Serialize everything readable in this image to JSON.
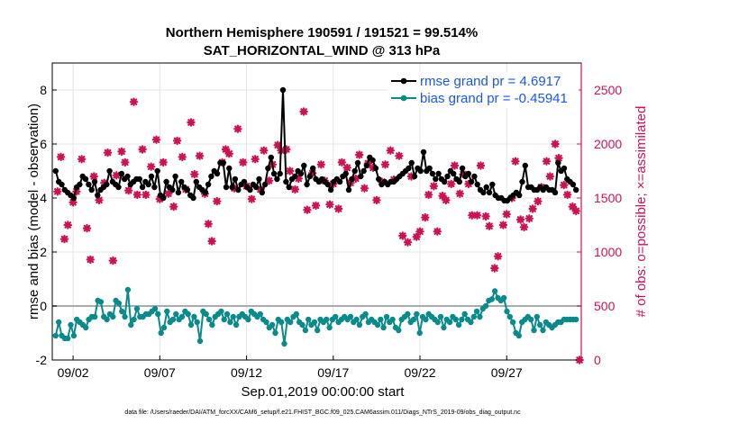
{
  "chart_data": {
    "type": "line",
    "title": "Northern Hemisphere 190591 / 191521 = 99.514%",
    "subtitle": "SAT_HORIZONTAL_WIND @ 313 hPa",
    "xlabel": "Sep.01,2019 00:00:00 start",
    "ylabel": "rmse and bias (model - observation)",
    "y2label": "# of obs: o=possible; ×=assimilated",
    "footnote": "data file: /Users/raeder/DAI/ATM_forcXX/CAM6_setup/f.e21.FHIST_BGC.f09_025.CAM6assim.011/Diags_NTrS_2019-09/obs_diag_output.nc",
    "x_start_day": 1,
    "x_end_day": 31,
    "xlim": [
      0.8,
      31.3
    ],
    "ylim": [
      -2,
      9
    ],
    "y2lim": [
      0,
      2750
    ],
    "xticks": [
      2,
      7,
      12,
      17,
      22,
      27
    ],
    "xticklabels": [
      "09/02",
      "09/07",
      "09/12",
      "09/17",
      "09/22",
      "09/27"
    ],
    "yticks": [
      -2,
      0,
      2,
      4,
      6,
      8
    ],
    "yticklabels": [
      "-2",
      "0",
      "2",
      "4",
      "6",
      "8"
    ],
    "y2ticks": [
      0,
      500,
      1000,
      1500,
      2000,
      2500
    ],
    "y2ticklabels": [
      "0",
      "500",
      "1000",
      "1500",
      "2000",
      "2500"
    ],
    "grid": true,
    "zero_line": 0,
    "legend": [
      {
        "label": "rmse grand pr = 4.6917",
        "color": "#000000"
      },
      {
        "label": "bias grand pr = -0.45941",
        "color": "#0a8a8a"
      }
    ],
    "legend_position": "top-right",
    "colors": {
      "rmse": "#000000",
      "bias": "#0a8a8a",
      "obs": "#cc1155",
      "right_axis": "#cc1155",
      "legend_text": "#1a55ee"
    },
    "series": [
      {
        "name": "rmse",
        "axis": "left",
        "values": [
          5.0,
          4.6,
          4.5,
          4.3,
          4.2,
          4.1,
          4.0,
          4.4,
          4.5,
          4.8,
          4.7,
          4.5,
          4.3,
          4.6,
          4.1,
          4.3,
          4.4,
          4.5,
          5.0,
          4.6,
          4.5,
          4.4,
          4.9,
          4.7,
          4.8,
          4.5,
          4.6,
          4.7,
          4.7,
          4.4,
          4.6,
          4.5,
          4.8,
          4.4,
          5.0,
          4.1,
          4.0,
          4.6,
          4.4,
          4.3,
          4.8,
          4.2,
          4.6,
          4.4,
          4.3,
          4.1,
          4.0,
          4.6,
          4.4,
          4.3,
          4.2,
          4.5,
          4.8,
          5.0,
          4.9,
          5.3,
          5.3,
          4.4,
          5.1,
          4.4,
          4.7,
          4.3,
          4.5,
          4.6,
          4.4,
          4.3,
          4.5,
          4.4,
          4.7,
          4.2,
          4.5,
          5.1,
          5.5,
          4.9,
          4.7,
          4.9,
          8.0,
          4.6,
          4.4,
          4.7,
          4.8,
          5.0,
          4.9,
          5.2,
          4.5,
          4.8,
          5.1,
          4.7,
          4.6,
          4.7,
          4.6,
          4.5,
          4.3,
          4.6,
          4.7,
          4.6,
          4.8,
          4.9,
          4.3,
          4.7,
          5.0,
          5.3,
          4.8,
          5.0,
          5.2,
          5.5,
          5.4,
          5.1,
          4.7,
          4.5,
          4.6,
          4.5,
          4.6,
          4.6,
          4.7,
          4.8,
          4.9,
          5.0,
          5.1,
          5.3,
          4.8,
          5.1,
          5.0,
          5.7,
          5.0,
          5.1,
          4.9,
          4.7,
          4.9,
          4.7,
          4.6,
          4.8,
          5.0,
          4.9,
          4.7,
          4.6,
          5.1,
          4.8,
          4.9,
          4.6,
          4.8,
          4.5,
          4.3,
          4.2,
          4.4,
          4.2,
          4.5,
          4.1,
          4.0,
          4.0,
          3.9,
          3.9,
          4.0,
          4.1,
          4.2,
          4.1,
          4.6,
          5.2,
          4.4,
          4.4,
          4.3,
          4.3,
          4.4,
          4.3,
          4.4,
          4.3,
          4.3,
          4.2,
          5.3,
          5.0,
          5.1,
          4.7,
          4.6,
          4.5,
          4.3
        ]
      },
      {
        "name": "bias",
        "axis": "left",
        "values": [
          -1.1,
          -0.6,
          -1.1,
          -1.2,
          -1.2,
          -0.7,
          -1.1,
          -0.5,
          -0.6,
          -0.7,
          -0.8,
          -0.5,
          -0.4,
          -0.4,
          0.2,
          0.15,
          -0.4,
          -0.5,
          -0.3,
          -0.4,
          0.2,
          0.1,
          -0.2,
          -0.4,
          0.6,
          -0.7,
          -0.5,
          -0.1,
          -0.4,
          -0.4,
          -0.3,
          -0.3,
          -0.2,
          -0.1,
          -0.3,
          -1.0,
          -0.8,
          -0.2,
          -0.6,
          -0.5,
          -0.3,
          -0.5,
          -0.4,
          -0.2,
          -0.3,
          -0.7,
          -0.4,
          -0.6,
          -1.3,
          -0.2,
          -0.3,
          -0.5,
          -0.7,
          -0.4,
          -0.3,
          -0.2,
          -0.5,
          -0.3,
          -0.6,
          -0.4,
          -0.7,
          -0.4,
          -0.3,
          -0.4,
          -0.5,
          -0.2,
          -0.3,
          -0.4,
          -0.3,
          -0.5,
          -0.6,
          -0.8,
          -0.7,
          -1.0,
          -0.5,
          -0.6,
          -1.4,
          -0.5,
          -0.6,
          -0.4,
          -0.3,
          -0.6,
          -0.7,
          -0.9,
          -0.5,
          -0.7,
          -0.6,
          -0.9,
          -0.5,
          -0.6,
          -0.5,
          -0.8,
          -0.5,
          -0.4,
          -0.6,
          -0.5,
          -0.4,
          -0.5,
          -0.4,
          -0.6,
          -0.5,
          -0.7,
          -0.4,
          -0.3,
          -0.6,
          -0.5,
          -0.6,
          -0.7,
          -0.5,
          -0.8,
          -0.4,
          -0.6,
          -0.5,
          -0.8,
          -0.9,
          -0.5,
          -0.4,
          -0.3,
          -0.6,
          -0.5,
          -0.3,
          -1.0,
          -0.4,
          -0.5,
          -0.3,
          -0.4,
          -0.5,
          -0.6,
          -0.4,
          -0.8,
          -0.5,
          -0.6,
          -0.4,
          -0.5,
          -0.7,
          -0.5,
          -0.3,
          -0.5,
          -0.6,
          -0.4,
          -0.2,
          -0.4,
          -0.1,
          0.0,
          0.2,
          0.25,
          0.55,
          0.3,
          0.2,
          0.3,
          -0.2,
          -0.4,
          -0.6,
          -1.0,
          -1.1,
          -0.6,
          -0.5,
          -0.4,
          -0.5,
          -0.9,
          -0.4,
          -0.7,
          -0.9,
          -0.6,
          -0.7,
          -0.8,
          -0.7,
          -0.6,
          -0.6,
          -0.5,
          -0.5,
          -0.5,
          -0.5,
          -0.5
        ]
      },
      {
        "name": "obs_assimilated",
        "axis": "right",
        "x": [
          1.1,
          1.3,
          1.5,
          1.7,
          2.0,
          2.2,
          2.5,
          2.8,
          3.0,
          3.2,
          3.5,
          3.8,
          4.0,
          4.3,
          4.5,
          4.8,
          5.0,
          5.2,
          5.5,
          5.7,
          6.0,
          6.2,
          6.5,
          6.8,
          7.0,
          7.2,
          7.5,
          7.8,
          8.0,
          8.3,
          8.5,
          8.8,
          9.0,
          9.3,
          9.6,
          9.8,
          10.0,
          10.3,
          10.6,
          10.8,
          11.0,
          11.3,
          11.5,
          11.8,
          12.0,
          12.3,
          12.5,
          12.8,
          13.0,
          13.3,
          13.5,
          13.8,
          14.0,
          14.3,
          14.5,
          14.8,
          15.0,
          15.3,
          15.5,
          15.8,
          16.0,
          16.3,
          16.5,
          16.8,
          17.0,
          17.3,
          17.5,
          17.8,
          18.0,
          18.3,
          18.5,
          18.8,
          19.0,
          19.3,
          19.5,
          19.8,
          20.0,
          20.3,
          20.5,
          20.8,
          21.0,
          21.3,
          21.5,
          21.8,
          22.0,
          22.3,
          22.5,
          22.8,
          23.0,
          23.3,
          23.5,
          23.8,
          24.0,
          24.3,
          24.5,
          24.8,
          25.0,
          25.3,
          25.5,
          25.8,
          26.0,
          26.3,
          26.5,
          26.8,
          27.0,
          27.3,
          27.5,
          27.8,
          28.0,
          28.3,
          28.5,
          28.8,
          29.0,
          29.3,
          29.5,
          29.8,
          30.0,
          30.3,
          30.5,
          30.8,
          31.0,
          31.2
        ],
        "values": [
          1560,
          1880,
          1120,
          1250,
          1460,
          1560,
          1860,
          1220,
          930,
          1700,
          1480,
          1640,
          1920,
          920,
          1710,
          1930,
          1830,
          1570,
          2390,
          1530,
          1950,
          1530,
          1790,
          2040,
          1490,
          1830,
          1540,
          1420,
          2030,
          1880,
          1580,
          2200,
          1720,
          1890,
          1540,
          1260,
          1100,
          1470,
          1830,
          1950,
          1910,
          1590,
          2140,
          1830,
          1610,
          1490,
          1860,
          1580,
          1940,
          1660,
          1810,
          1990,
          1940,
          1950,
          1750,
          1580,
          1680,
          2300,
          1390,
          1730,
          1430,
          1810,
          1660,
          1440,
          1630,
          1400,
          1830,
          1780,
          1640,
          1680,
          1900,
          1590,
          1820,
          1780,
          1480,
          1650,
          1810,
          1940,
          1670,
          1890,
          1150,
          1090,
          1700,
          1140,
          1190,
          1320,
          1530,
          1610,
          1190,
          1520,
          1480,
          1630,
          1800,
          1540,
          1720,
          1630,
          1340,
          1340,
          1800,
          1330,
          1240,
          850,
          960,
          1250,
          1350,
          1500,
          1840,
          1300,
          1230,
          1310,
          1400,
          1470,
          1600,
          1840,
          1700,
          2000,
          1870,
          1620,
          1530,
          1420,
          1380,
          0
        ]
      }
    ]
  }
}
